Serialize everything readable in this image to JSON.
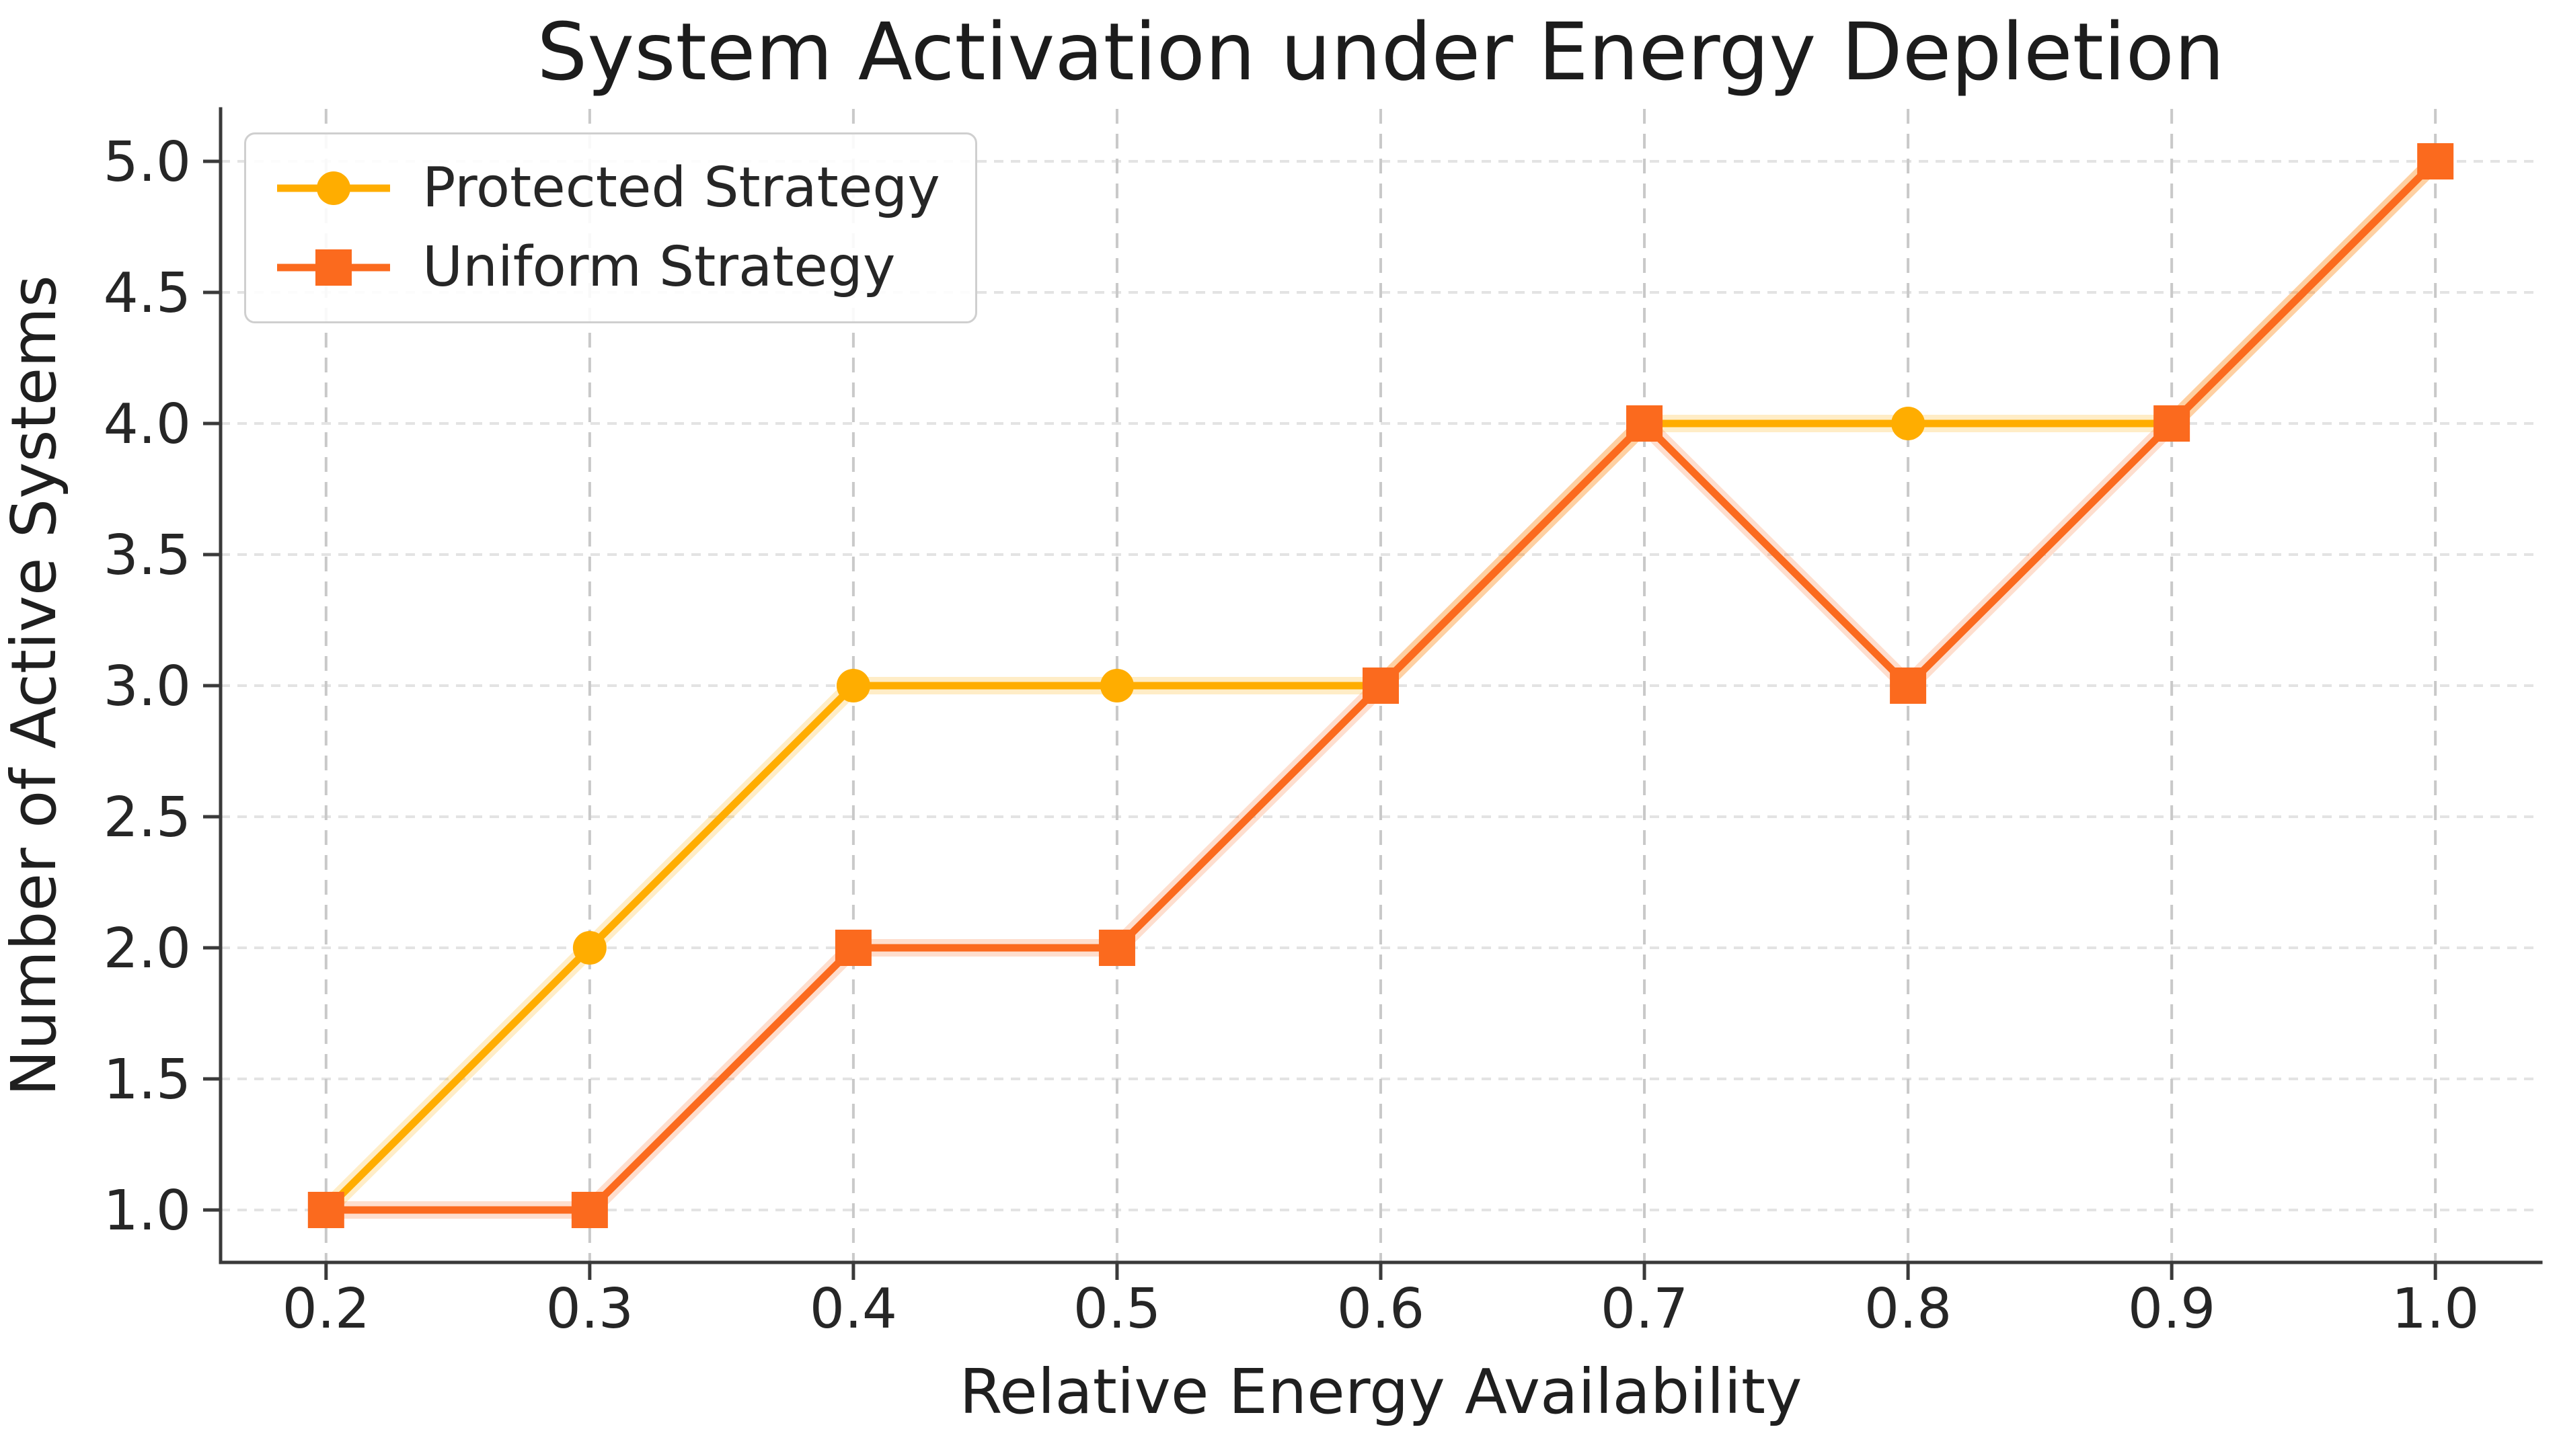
{
  "chart_data": {
    "type": "line",
    "title": "System Activation under Energy Depletion",
    "xlabel": "Relative Energy Availability",
    "ylabel": "Number of Active Systems",
    "x": [
      0.2,
      0.3,
      0.4,
      0.5,
      0.6,
      0.7,
      0.8,
      0.9,
      1.0
    ],
    "x_tick_labels": [
      "0.2",
      "0.3",
      "0.4",
      "0.5",
      "0.6",
      "0.7",
      "0.8",
      "0.9",
      "1.0"
    ],
    "y_ticks": [
      1.0,
      1.5,
      2.0,
      2.5,
      3.0,
      3.5,
      4.0,
      4.5,
      5.0
    ],
    "y_tick_labels": [
      "1.0",
      "1.5",
      "2.0",
      "2.5",
      "3.0",
      "3.5",
      "4.0",
      "4.5",
      "5.0"
    ],
    "xlim": [
      0.16,
      1.04
    ],
    "ylim": [
      0.8,
      5.2
    ],
    "grid": true,
    "legend_position": "upper left",
    "series": [
      {
        "name": "Protected Strategy",
        "color": "#FFAD00",
        "marker": "circle",
        "values": [
          1,
          2,
          3,
          3,
          3,
          4,
          4,
          4,
          5
        ]
      },
      {
        "name": "Uniform Strategy",
        "color": "#FB6A1E",
        "marker": "square",
        "values": [
          1,
          1,
          2,
          2,
          3,
          4,
          3,
          4,
          5
        ]
      }
    ],
    "colors": {
      "background": "#ffffff",
      "text": "#1f1f1f",
      "spine": "#3a3a3a",
      "grid_horizontal": "#e3e3e3",
      "grid_vertical": "#c9c9c9"
    }
  }
}
